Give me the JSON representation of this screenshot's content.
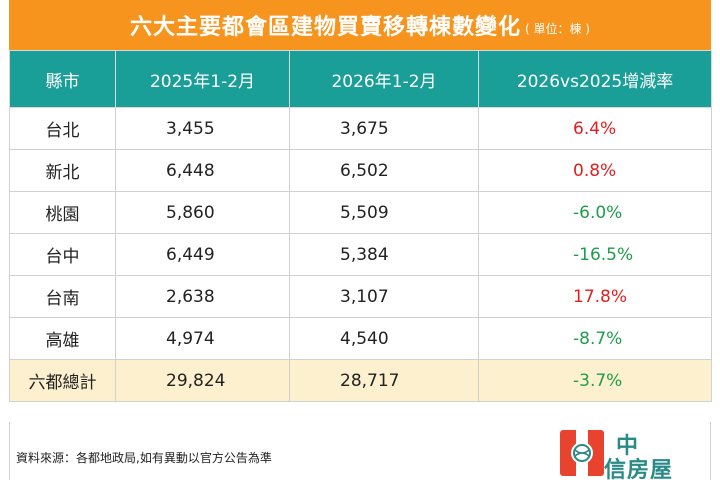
{
  "title": {
    "main": "六大主要都會區建物買賣移轉棟數變化",
    "unit": "( 單位：棟 )"
  },
  "table": {
    "headers": [
      "縣市",
      "2025年1-2月",
      "2026年1-2月",
      "2026vs2025增減率"
    ],
    "rows": [
      {
        "city": "台北",
        "y2025": "3,455",
        "y2026": "3,675",
        "change": "6.4%",
        "direction": "up"
      },
      {
        "city": "新北",
        "y2025": "6,448",
        "y2026": "6,502",
        "change": "0.8%",
        "direction": "up"
      },
      {
        "city": "桃園",
        "y2025": "5,860",
        "y2026": "5,509",
        "change": "-6.0%",
        "direction": "down"
      },
      {
        "city": "台中",
        "y2025": "6,449",
        "y2026": "5,384",
        "change": "-16.5%",
        "direction": "down"
      },
      {
        "city": "台南",
        "y2025": "2,638",
        "y2026": "3,107",
        "change": "17.8%",
        "direction": "up"
      },
      {
        "city": "高雄",
        "y2025": "4,974",
        "y2026": "4,540",
        "change": "-8.7%",
        "direction": "down"
      }
    ],
    "total": {
      "city": "六都總計",
      "y2025": "29,824",
      "y2026": "28,717",
      "change": "-3.7%",
      "direction": "down"
    }
  },
  "footer": {
    "source": "資料來源：各都地政局,如有異動以官方公告為準",
    "logo_line1": "中",
    "logo_line2": "信房屋"
  },
  "colors": {
    "title_bg": "#f7941d",
    "header_bg": "#1a9e98",
    "total_bg": "#fdf0cf",
    "positive": "#e02020",
    "negative": "#1f9e4a",
    "logo_red": "#e8432f",
    "logo_teal": "#2a8a87"
  }
}
